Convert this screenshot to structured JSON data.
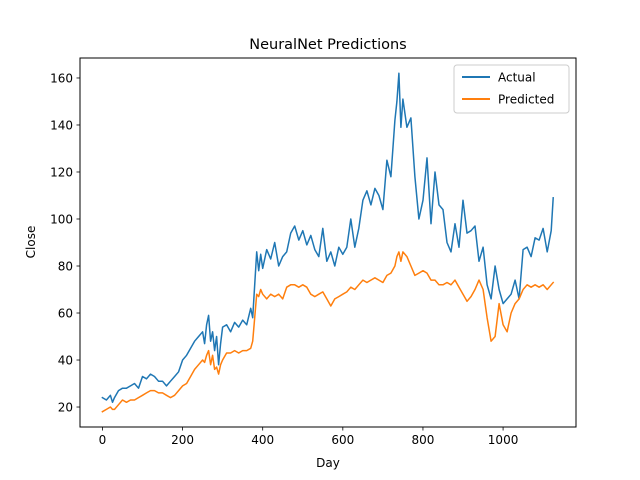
{
  "chart_data": {
    "type": "line",
    "title": "NeuralNet Predictions",
    "xlabel": "Day",
    "ylabel": "Close",
    "xlim": [
      -56,
      1182
    ],
    "ylim": [
      11.5,
      168.5
    ],
    "xticks": [
      0,
      200,
      400,
      600,
      800,
      1000
    ],
    "yticks": [
      20,
      40,
      60,
      80,
      100,
      120,
      140,
      160
    ],
    "grid": false,
    "legend": "top-right",
    "series": [
      {
        "name": "Actual",
        "color": "#1f77b4",
        "x": [
          0,
          10,
          20,
          25,
          30,
          40,
          50,
          60,
          70,
          80,
          90,
          100,
          110,
          120,
          130,
          140,
          150,
          160,
          170,
          180,
          190,
          200,
          210,
          220,
          230,
          240,
          250,
          255,
          260,
          265,
          270,
          275,
          280,
          285,
          290,
          295,
          300,
          310,
          320,
          330,
          340,
          350,
          360,
          370,
          375,
          380,
          385,
          390,
          395,
          400,
          410,
          420,
          430,
          440,
          450,
          460,
          470,
          480,
          490,
          500,
          510,
          520,
          530,
          540,
          550,
          560,
          570,
          580,
          590,
          600,
          610,
          620,
          630,
          640,
          650,
          660,
          670,
          680,
          690,
          700,
          710,
          720,
          730,
          735,
          740,
          745,
          750,
          760,
          770,
          780,
          790,
          800,
          810,
          820,
          830,
          840,
          850,
          860,
          870,
          880,
          890,
          900,
          910,
          920,
          930,
          940,
          950,
          960,
          970,
          980,
          990,
          1000,
          1010,
          1020,
          1030,
          1040,
          1050,
          1060,
          1070,
          1080,
          1090,
          1100,
          1110,
          1120,
          1125
        ],
        "y": [
          24,
          23,
          25,
          22,
          24,
          27,
          28,
          28,
          29,
          30,
          28,
          33,
          32,
          34,
          33,
          31,
          31,
          29,
          31,
          33,
          35,
          40,
          42,
          45,
          48,
          50,
          52,
          47,
          55,
          59,
          48,
          52,
          44,
          50,
          38,
          47,
          54,
          55,
          52,
          56,
          54,
          57,
          55,
          62,
          58,
          72,
          86,
          78,
          85,
          79,
          87,
          83,
          90,
          80,
          84,
          86,
          94,
          97,
          91,
          95,
          89,
          93,
          87,
          84,
          96,
          82,
          86,
          80,
          88,
          85,
          88,
          100,
          88,
          96,
          108,
          112,
          106,
          113,
          110,
          104,
          125,
          118,
          142,
          150,
          162,
          139,
          151,
          139,
          143,
          118,
          100,
          108,
          126,
          98,
          120,
          106,
          104,
          90,
          86,
          98,
          88,
          108,
          94,
          95,
          97,
          82,
          88,
          72,
          66,
          80,
          70,
          64,
          66,
          68,
          74,
          66,
          87,
          88,
          84,
          92,
          91,
          96,
          86,
          95,
          109
        ]
      },
      {
        "name": "Predicted",
        "color": "#ff7f0e",
        "x": [
          0,
          10,
          20,
          25,
          30,
          40,
          50,
          60,
          70,
          80,
          90,
          100,
          110,
          120,
          130,
          140,
          150,
          160,
          170,
          180,
          190,
          200,
          210,
          220,
          230,
          240,
          250,
          255,
          260,
          265,
          270,
          275,
          280,
          285,
          290,
          295,
          300,
          310,
          320,
          330,
          340,
          350,
          360,
          370,
          375,
          380,
          385,
          390,
          395,
          400,
          410,
          420,
          430,
          440,
          450,
          460,
          470,
          480,
          490,
          500,
          510,
          520,
          530,
          540,
          550,
          560,
          570,
          580,
          590,
          600,
          610,
          620,
          630,
          640,
          650,
          660,
          670,
          680,
          690,
          700,
          710,
          720,
          730,
          735,
          740,
          745,
          750,
          760,
          770,
          780,
          790,
          800,
          810,
          820,
          830,
          840,
          850,
          860,
          870,
          880,
          890,
          900,
          910,
          920,
          930,
          940,
          950,
          960,
          970,
          980,
          990,
          1000,
          1010,
          1020,
          1030,
          1040,
          1050,
          1060,
          1070,
          1080,
          1090,
          1100,
          1110,
          1120,
          1125
        ],
        "y": [
          18,
          19,
          20,
          19,
          19,
          21,
          23,
          22,
          23,
          23,
          24,
          25,
          26,
          27,
          27,
          26,
          26,
          25,
          24,
          25,
          27,
          29,
          30,
          33,
          36,
          38,
          40,
          39,
          42,
          44,
          38,
          42,
          36,
          37,
          34,
          38,
          40,
          43,
          43,
          44,
          43,
          44,
          44,
          45,
          48,
          58,
          68,
          67,
          70,
          68,
          66,
          68,
          67,
          68,
          66,
          71,
          72,
          72,
          71,
          72,
          71,
          68,
          67,
          68,
          69,
          66,
          63,
          66,
          67,
          68,
          69,
          71,
          70,
          72,
          74,
          73,
          74,
          75,
          74,
          73,
          76,
          77,
          80,
          84,
          86,
          82,
          86,
          84,
          80,
          76,
          77,
          78,
          77,
          74,
          74,
          72,
          72,
          73,
          72,
          74,
          71,
          68,
          65,
          67,
          70,
          74,
          70,
          58,
          48,
          50,
          64,
          55,
          52,
          60,
          64,
          66,
          70,
          72,
          71,
          72,
          71,
          72,
          70,
          72,
          73
        ]
      }
    ]
  }
}
